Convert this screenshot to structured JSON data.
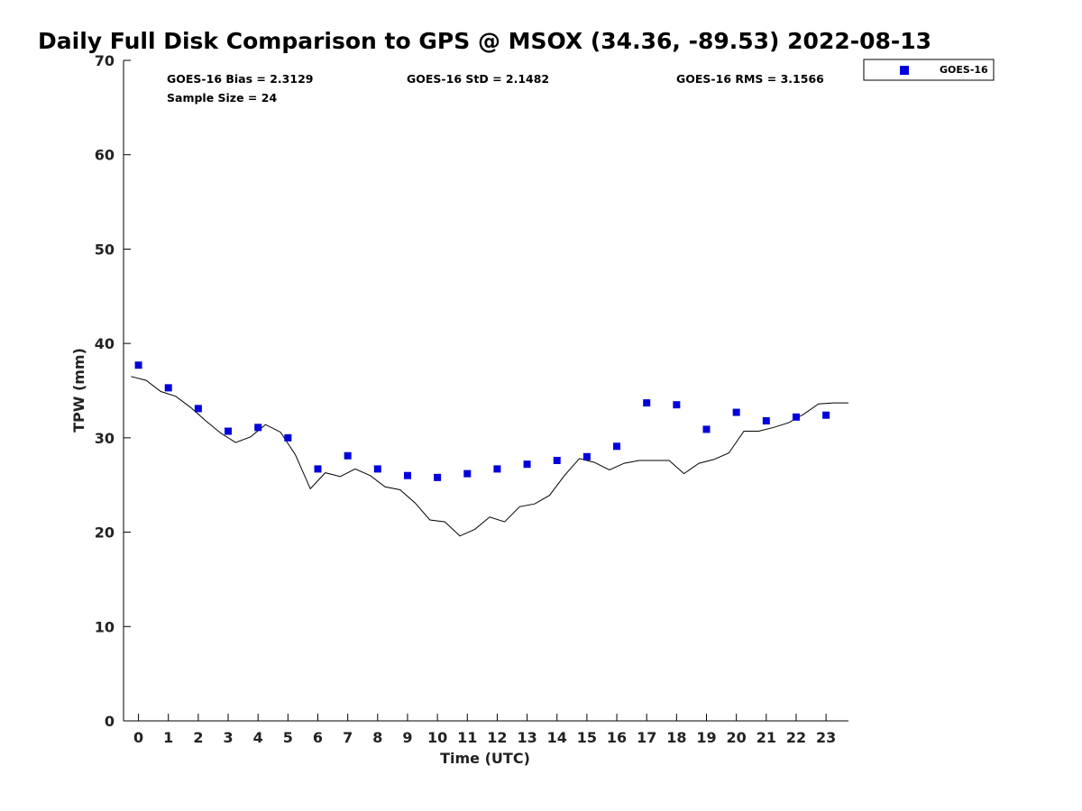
{
  "chart_data": {
    "type": "scatter",
    "title": "Daily Full Disk Comparison to GPS @ MSOX (34.36, -89.53) 2022-08-13",
    "xlabel": "Time (UTC)",
    "ylabel": "TPW (mm)",
    "xlim": [
      -0.5,
      23.75
    ],
    "ylim": [
      0,
      70
    ],
    "x_ticks": [
      0,
      1,
      2,
      3,
      4,
      5,
      6,
      7,
      8,
      9,
      10,
      11,
      12,
      13,
      14,
      15,
      16,
      17,
      18,
      19,
      20,
      21,
      22,
      23
    ],
    "y_ticks": [
      0,
      10,
      20,
      30,
      40,
      50,
      60,
      70
    ],
    "grid": false,
    "legend_position": "top-right",
    "stats": {
      "bias": "GOES-16 Bias = 2.3129",
      "std": "GOES-16 StD = 2.1482",
      "rms": "GOES-16 RMS = 3.1566",
      "sample_size": "Sample Size = 24"
    },
    "series": [
      {
        "name": "GOES-16",
        "kind": "scatter",
        "marker": "square",
        "color": "#0000dd",
        "x": [
          0,
          1,
          2,
          3,
          4,
          5,
          6,
          7,
          8,
          9,
          10,
          11,
          12,
          13,
          14,
          15,
          16,
          17,
          18,
          19,
          20,
          21,
          22,
          23
        ],
        "y": [
          37.7,
          35.3,
          33.1,
          30.7,
          31.1,
          30.0,
          26.7,
          28.1,
          26.7,
          26.0,
          25.8,
          26.2,
          26.7,
          27.2,
          27.6,
          28.0,
          29.1,
          33.7,
          33.5,
          30.9,
          32.7,
          31.8,
          32.2,
          32.4
        ]
      },
      {
        "kind": "line",
        "color": "#000000",
        "x": [
          -0.25,
          0.25,
          0.75,
          1.25,
          1.75,
          2.25,
          2.75,
          3.25,
          3.75,
          4.25,
          4.75,
          5.25,
          5.75,
          6.25,
          6.75,
          7.25,
          7.75,
          8.25,
          8.75,
          9.25,
          9.75,
          10.25,
          10.75,
          11.25,
          11.75,
          12.25,
          12.75,
          13.25,
          13.75,
          14.25,
          14.75,
          15.25,
          15.75,
          16.25,
          16.75,
          17.25,
          17.75,
          18.25,
          18.75,
          19.25,
          19.75,
          20.25,
          20.75,
          21.25,
          21.75,
          22.25,
          22.75,
          23.25,
          23.75
        ],
        "y": [
          36.5,
          36.1,
          34.9,
          34.4,
          33.2,
          31.8,
          30.5,
          29.5,
          30.1,
          31.4,
          30.6,
          28.2,
          24.6,
          26.3,
          25.9,
          26.7,
          26.0,
          24.8,
          24.5,
          23.1,
          21.3,
          21.1,
          19.6,
          20.3,
          21.6,
          21.1,
          22.7,
          23.0,
          23.9,
          26.0,
          27.8,
          27.4,
          26.6,
          27.3,
          27.6,
          27.6,
          27.6,
          26.2,
          27.3,
          27.7,
          28.4,
          30.7,
          30.7,
          31.1,
          31.6,
          32.5,
          33.6,
          33.7,
          33.7
        ]
      }
    ]
  }
}
